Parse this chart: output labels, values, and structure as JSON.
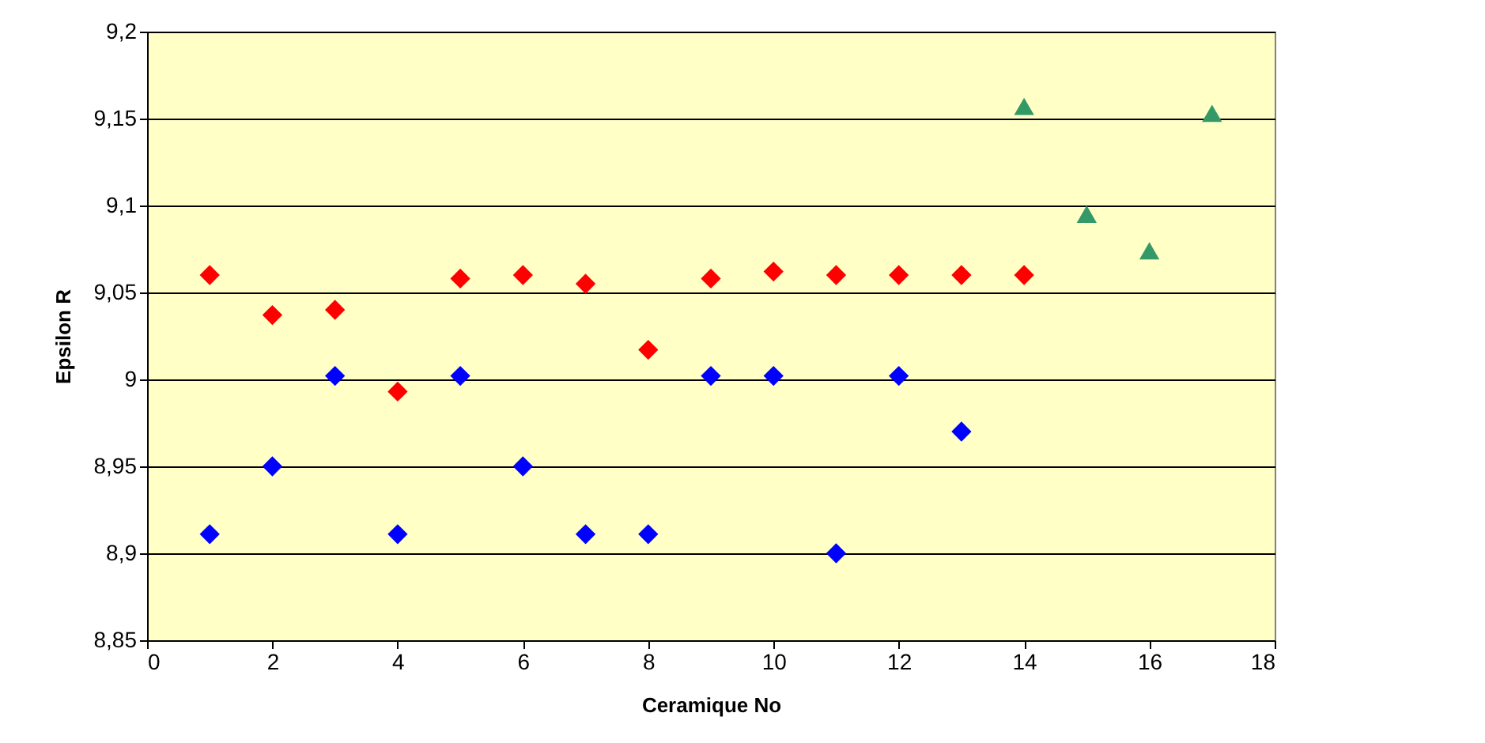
{
  "chart_data": {
    "type": "scatter",
    "xlabel": "Ceramique No",
    "ylabel": "Epsilon R",
    "series": [
      {
        "color": "#0000ff",
        "marker": "diamond",
        "x": [
          1,
          2,
          3,
          4,
          5,
          6,
          7,
          8,
          9,
          10,
          11,
          12,
          13
        ],
        "values": [
          8.911,
          8.95,
          9.002,
          8.911,
          9.002,
          8.95,
          8.911,
          8.911,
          9.002,
          9.002,
          8.9,
          9.002,
          8.97
        ]
      },
      {
        "color": "#ff0000",
        "marker": "diamond",
        "x": [
          1,
          2,
          3,
          4,
          5,
          6,
          7,
          8,
          9,
          10,
          11,
          12,
          13,
          14
        ],
        "values": [
          9.06,
          9.037,
          9.04,
          8.993,
          9.058,
          9.06,
          9.055,
          9.017,
          9.058,
          9.062,
          9.06,
          9.06,
          9.06,
          9.06
        ]
      },
      {
        "color": "#339966",
        "marker": "triangle",
        "x": [
          14,
          15,
          16,
          17
        ],
        "values": [
          9.157,
          9.095,
          9.074,
          9.153
        ]
      }
    ],
    "xlim": [
      0,
      18
    ],
    "xticks": [
      0,
      2,
      4,
      6,
      8,
      10,
      12,
      14,
      16,
      18
    ],
    "ylim": [
      8.85,
      9.2
    ],
    "yticks": [
      {
        "value": 8.85,
        "label": "8,85"
      },
      {
        "value": 8.9,
        "label": "8,9"
      },
      {
        "value": 8.95,
        "label": "8,95"
      },
      {
        "value": 9,
        "label": "9"
      },
      {
        "value": 9.05,
        "label": "9,05"
      },
      {
        "value": 9.1,
        "label": "9,1"
      },
      {
        "value": 9.15,
        "label": "9,15"
      },
      {
        "value": 9.2,
        "label": "9,2"
      }
    ],
    "grid": "y"
  }
}
